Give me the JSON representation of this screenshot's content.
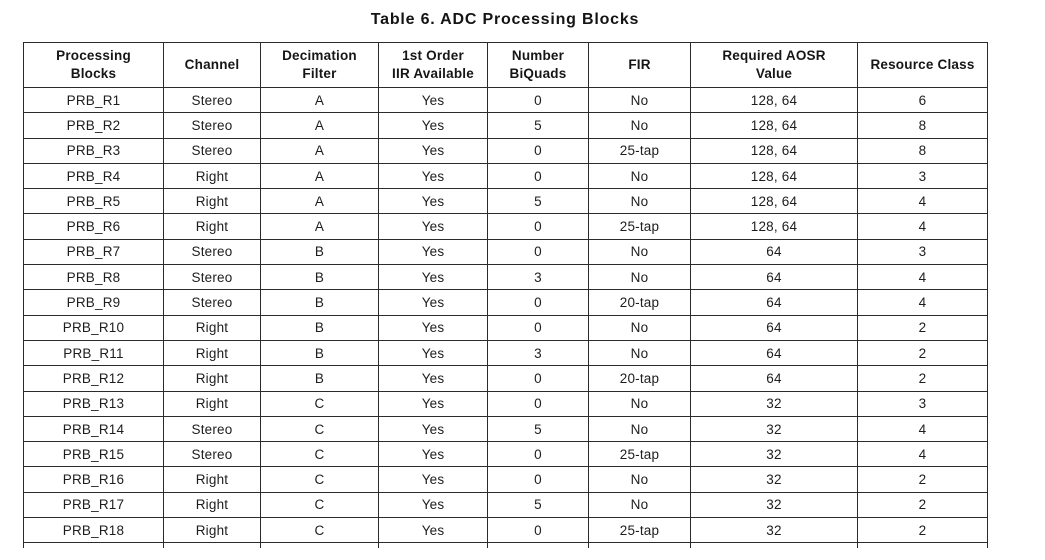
{
  "page_title": "Table 6. ADC Processing Blocks",
  "colors": {
    "background": "#ffffff",
    "text": "#1d1d1d",
    "grid_border": "#2b2b2b"
  },
  "table": {
    "column_headers": [
      "Processing\nBlocks",
      "Channel",
      "Decimation\nFilter",
      "1st Order\nIIR Available",
      "Number\nBiQuads",
      "FIR",
      "Required AOSR\nValue",
      "Resource Class"
    ],
    "rows": [
      [
        "PRB_R1",
        "Stereo",
        "A",
        "Yes",
        "0",
        "No",
        "128, 64",
        "6"
      ],
      [
        "PRB_R2",
        "Stereo",
        "A",
        "Yes",
        "5",
        "No",
        "128, 64",
        "8"
      ],
      [
        "PRB_R3",
        "Stereo",
        "A",
        "Yes",
        "0",
        "25-tap",
        "128, 64",
        "8"
      ],
      [
        "PRB_R4",
        "Right",
        "A",
        "Yes",
        "0",
        "No",
        "128, 64",
        "3"
      ],
      [
        "PRB_R5",
        "Right",
        "A",
        "Yes",
        "5",
        "No",
        "128, 64",
        "4"
      ],
      [
        "PRB_R6",
        "Right",
        "A",
        "Yes",
        "0",
        "25-tap",
        "128, 64",
        "4"
      ],
      [
        "PRB_R7",
        "Stereo",
        "B",
        "Yes",
        "0",
        "No",
        "64",
        "3"
      ],
      [
        "PRB_R8",
        "Stereo",
        "B",
        "Yes",
        "3",
        "No",
        "64",
        "4"
      ],
      [
        "PRB_R9",
        "Stereo",
        "B",
        "Yes",
        "0",
        "20-tap",
        "64",
        "4"
      ],
      [
        "PRB_R10",
        "Right",
        "B",
        "Yes",
        "0",
        "No",
        "64",
        "2"
      ],
      [
        "PRB_R11",
        "Right",
        "B",
        "Yes",
        "3",
        "No",
        "64",
        "2"
      ],
      [
        "PRB_R12",
        "Right",
        "B",
        "Yes",
        "0",
        "20-tap",
        "64",
        "2"
      ],
      [
        "PRB_R13",
        "Right",
        "C",
        "Yes",
        "0",
        "No",
        "32",
        "3"
      ],
      [
        "PRB_R14",
        "Stereo",
        "C",
        "Yes",
        "5",
        "No",
        "32",
        "4"
      ],
      [
        "PRB_R15",
        "Stereo",
        "C",
        "Yes",
        "0",
        "25-tap",
        "32",
        "4"
      ],
      [
        "PRB_R16",
        "Right",
        "C",
        "Yes",
        "0",
        "No",
        "32",
        "2"
      ],
      [
        "PRB_R17",
        "Right",
        "C",
        "Yes",
        "5",
        "No",
        "32",
        "2"
      ],
      [
        "PRB_R18",
        "Right",
        "C",
        "Yes",
        "0",
        "25-tap",
        "32",
        "2"
      ]
    ]
  }
}
